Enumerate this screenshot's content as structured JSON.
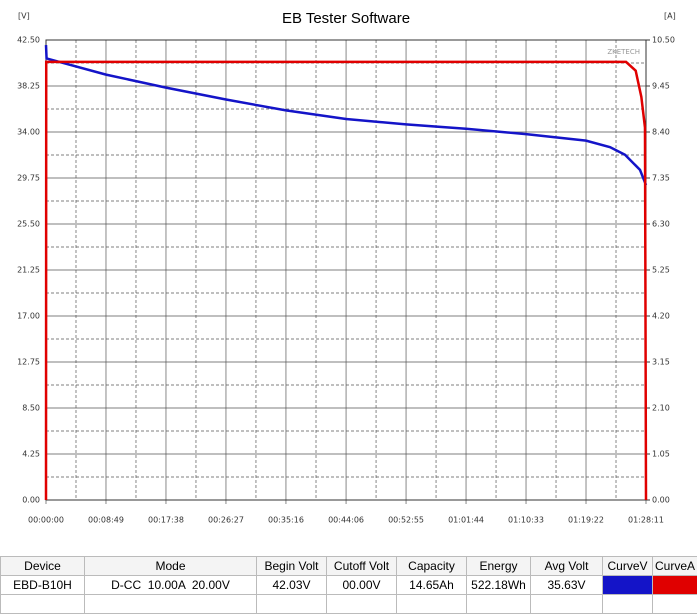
{
  "chart_data": {
    "type": "line",
    "title": "EB Tester Software",
    "y_label": "[V]",
    "y2_label": "[A]",
    "watermark": "ZKETECH",
    "xlim": [
      0,
      5291
    ],
    "xticks": [
      {
        "value": 0,
        "label": "00:00:00"
      },
      {
        "value": 529,
        "label": "00:08:49"
      },
      {
        "value": 1058,
        "label": "00:17:38"
      },
      {
        "value": 1587,
        "label": "00:26:27"
      },
      {
        "value": 2116,
        "label": "00:35:16"
      },
      {
        "value": 2646,
        "label": "00:44:06"
      },
      {
        "value": 3175,
        "label": "00:52:55"
      },
      {
        "value": 3704,
        "label": "01:01:44"
      },
      {
        "value": 4233,
        "label": "01:10:33"
      },
      {
        "value": 4762,
        "label": "01:19:22"
      },
      {
        "value": 5291,
        "label": "01:28:11"
      }
    ],
    "ylim": [
      0,
      42.5
    ],
    "yticks": [
      {
        "value": 0,
        "label": "0.00"
      },
      4.25,
      {
        "value": 8.5,
        "label": "8.50"
      },
      12.75,
      {
        "value": 17,
        "label": "17.00"
      },
      21.25,
      {
        "value": 25.5,
        "label": "25.50"
      },
      29.75,
      {
        "value": 34,
        "label": "34.00"
      },
      38.25,
      {
        "value": 42.5,
        "label": "42.50"
      }
    ],
    "y2lim": [
      0,
      10.5
    ],
    "y2ticks": [
      {
        "value": 0,
        "label": "0.00"
      },
      1.05,
      {
        "value": 2.1,
        "label": "2.10"
      },
      3.15,
      {
        "value": 4.2,
        "label": "4.20"
      },
      5.25,
      {
        "value": 6.3,
        "label": "6.30"
      },
      7.35,
      {
        "value": 8.4,
        "label": "8.40"
      },
      9.45,
      {
        "value": 10.5,
        "label": "10.50"
      }
    ],
    "grid": true,
    "series": [
      {
        "color": "#1414c8",
        "x": [
          0,
          5,
          529,
          1058,
          1587,
          2116,
          2646,
          3175,
          3704,
          4233,
          4762,
          4974,
          5106,
          5238,
          5291
        ],
        "values": [
          42.03,
          40.8,
          39.3,
          38.1,
          37.0,
          36.0,
          35.2,
          34.7,
          34.3,
          33.8,
          33.2,
          32.6,
          31.9,
          30.5,
          29.1
        ]
      },
      {
        "color": "#e00000",
        "axis": "y2",
        "x": [
          0,
          2,
          5115,
          5200,
          5250,
          5282,
          5291
        ],
        "values": [
          0,
          10,
          10,
          9.8,
          9.2,
          8.5,
          0
        ]
      }
    ]
  },
  "table": {
    "headers": [
      "Device",
      "Mode",
      "Begin Volt",
      "Cutoff Volt",
      "Capacity",
      "Energy",
      "Avg Volt",
      "CurveV",
      "CurveA"
    ],
    "rows": [
      [
        "EBD-B10H",
        "D-CC  10.00A  20.00V",
        "42.03V",
        "00.00V",
        "14.65Ah",
        "522.18Wh",
        "35.63V"
      ]
    ]
  }
}
